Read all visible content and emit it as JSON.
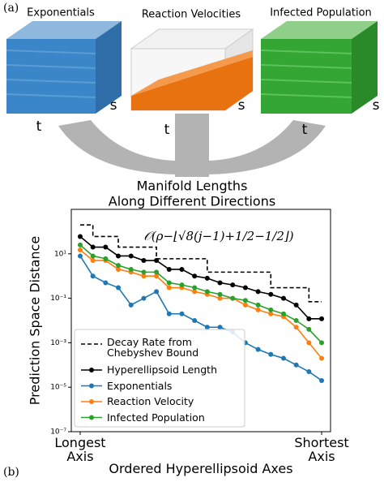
{
  "figure": {
    "panel_a": "(a)",
    "panel_b": "(b)",
    "cubes": [
      {
        "title": "Exponentials",
        "x_axis": "t",
        "y_axis": "s"
      },
      {
        "title": "Reaction Velocities",
        "x_axis": "t",
        "y_axis": "s"
      },
      {
        "title": "Infected Population",
        "x_axis": "t",
        "y_axis": "s"
      }
    ],
    "merge_label": [
      "Manifold Lengths",
      "Along Different Directions"
    ]
  },
  "chart_data": {
    "type": "line",
    "xlabel": "Ordered Hyperellipsoid Axes",
    "ylabel": "Prediction Space Distance",
    "annotation": "𝒪(ρ−⌊√8(j−1)+1/2−1/2⌋)",
    "log_y": true,
    "ylim": [
      1e-07,
      1000
    ],
    "yticks": [
      {
        "value": 10,
        "label": "10¹"
      },
      {
        "value": 0.1,
        "label": "10⁻¹"
      },
      {
        "value": 0.001,
        "label": "10⁻³"
      },
      {
        "value": 1e-05,
        "label": "10⁻⁵"
      },
      {
        "value": 1e-07,
        "label": "10⁻⁷"
      }
    ],
    "xlim": [
      0.3,
      20.7
    ],
    "xticks": [
      {
        "value": 1,
        "label": "Longest Axis"
      },
      {
        "value": 20,
        "label": "Shortest Axis"
      }
    ],
    "x": [
      1,
      2,
      3,
      4,
      5,
      6,
      7,
      8,
      9,
      10,
      11,
      12,
      13,
      14,
      15,
      16,
      17,
      18,
      19,
      20
    ],
    "legend": "lower left",
    "series": [
      {
        "name": "Decay Rate from Chebyshev Bound",
        "color": "#000000",
        "dashed": true,
        "step": true,
        "markers": false,
        "values": [
          200,
          60,
          60,
          20,
          20,
          20,
          6,
          6,
          6,
          6,
          1.5,
          1.5,
          1.5,
          1.5,
          1.5,
          0.3,
          0.3,
          0.3,
          0.07,
          0.07
        ]
      },
      {
        "name": "Hyperellipsoid Length",
        "color": "#000000",
        "markers": true,
        "values": [
          60,
          20,
          20,
          8,
          8,
          5,
          5,
          2,
          2,
          1,
          0.8,
          0.5,
          0.4,
          0.3,
          0.2,
          0.15,
          0.1,
          0.05,
          0.012,
          0.012
        ]
      },
      {
        "name": "Exponentials",
        "color": "#1f77b4",
        "markers": true,
        "values": [
          8,
          1,
          0.5,
          0.3,
          0.05,
          0.1,
          0.2,
          0.02,
          0.02,
          0.01,
          0.005,
          0.005,
          0.003,
          0.001,
          0.0005,
          0.0003,
          0.0002,
          0.0001,
          5e-05,
          2e-05
        ]
      },
      {
        "name": "Reaction Velocity",
        "color": "#ff7f0e",
        "markers": true,
        "values": [
          15,
          5,
          5,
          2,
          1.5,
          1,
          1,
          0.3,
          0.3,
          0.2,
          0.15,
          0.1,
          0.1,
          0.05,
          0.03,
          0.02,
          0.015,
          0.005,
          0.001,
          0.0002
        ]
      },
      {
        "name": "Infected Population",
        "color": "#2ca02c",
        "markers": true,
        "values": [
          25,
          8,
          6,
          3,
          2,
          1.5,
          1.5,
          0.5,
          0.4,
          0.3,
          0.2,
          0.15,
          0.1,
          0.08,
          0.05,
          0.03,
          0.02,
          0.01,
          0.004,
          0.001
        ]
      }
    ]
  }
}
